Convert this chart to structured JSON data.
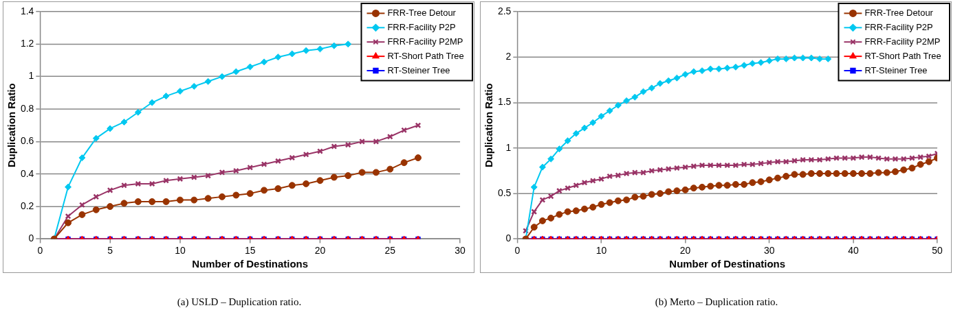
{
  "chart_data": [
    {
      "type": "line",
      "xlabel": "Number of Destinations",
      "ylabel": "Duplication Ratio",
      "x": [
        1,
        2,
        3,
        4,
        5,
        6,
        7,
        8,
        9,
        10,
        11,
        12,
        13,
        14,
        15,
        16,
        17,
        18,
        19,
        20,
        21,
        22,
        23,
        24,
        25,
        26,
        27
      ],
      "xlim": [
        0,
        30
      ],
      "xticks": [
        0,
        5,
        10,
        15,
        20,
        25,
        30
      ],
      "ylim": [
        0,
        1.4
      ],
      "yticks": [
        0,
        0.2,
        0.4,
        0.6,
        0.8,
        1,
        1.2,
        1.4
      ],
      "grid": "y",
      "legend": "top right",
      "annotations": [
        "(a)  USLD – Duplication ratio."
      ],
      "series": [
        {
          "name": "FRR-Tree Detour",
          "color": "#993300",
          "marker": "circle",
          "values": [
            0,
            0.1,
            0.15,
            0.18,
            0.2,
            0.22,
            0.23,
            0.23,
            0.23,
            0.24,
            0.24,
            0.25,
            0.26,
            0.27,
            0.28,
            0.3,
            0.31,
            0.33,
            0.34,
            0.36,
            0.38,
            0.39,
            0.41,
            0.41,
            0.43,
            0.47,
            0.5
          ]
        },
        {
          "name": "FRR-Facility P2P",
          "color": "#00c8f0",
          "marker": "diamond",
          "values": [
            0,
            0.32,
            0.5,
            0.62,
            0.68,
            0.72,
            0.78,
            0.84,
            0.88,
            0.91,
            0.94,
            0.97,
            1.0,
            1.03,
            1.06,
            1.09,
            1.12,
            1.14,
            1.16,
            1.17,
            1.19,
            1.2,
            null,
            null,
            null,
            null,
            null
          ]
        },
        {
          "name": "FRR-Facility P2MP",
          "color": "#993366",
          "marker": "cross",
          "values": [
            0,
            0.14,
            0.21,
            0.26,
            0.3,
            0.33,
            0.34,
            0.34,
            0.36,
            0.37,
            0.38,
            0.39,
            0.41,
            0.42,
            0.44,
            0.46,
            0.48,
            0.5,
            0.52,
            0.54,
            0.57,
            0.58,
            0.6,
            0.6,
            0.63,
            0.67,
            0.7
          ]
        },
        {
          "name": "RT-Short Path Tree",
          "color": "#ff0000",
          "marker": "triangle",
          "values": [
            0,
            0,
            0,
            0,
            0,
            0,
            0,
            0,
            0,
            0,
            0,
            0,
            0,
            0,
            0,
            0,
            0,
            0,
            0,
            0,
            0,
            0,
            0,
            0,
            0,
            0,
            0
          ]
        },
        {
          "name": "RT-Steiner Tree",
          "color": "#0000ff",
          "marker": "square",
          "values": [
            0,
            0,
            0,
            0,
            0,
            0,
            0,
            0,
            0,
            0,
            0,
            0,
            0,
            0,
            0,
            0,
            0,
            0,
            0,
            0,
            0,
            0,
            0,
            0,
            0,
            0,
            0
          ]
        }
      ]
    },
    {
      "type": "line",
      "xlabel": "Number of Destinations",
      "ylabel": "Duplication Ratio",
      "x": [
        1,
        2,
        3,
        4,
        5,
        6,
        7,
        8,
        9,
        10,
        11,
        12,
        13,
        14,
        15,
        16,
        17,
        18,
        19,
        20,
        21,
        22,
        23,
        24,
        25,
        26,
        27,
        28,
        29,
        30,
        31,
        32,
        33,
        34,
        35,
        36,
        37,
        38,
        39,
        40,
        41,
        42,
        43,
        44,
        45,
        46,
        47,
        48,
        49,
        50
      ],
      "xlim": [
        0,
        50
      ],
      "xticks": [
        0,
        10,
        20,
        30,
        40,
        50
      ],
      "ylim": [
        0,
        2.5
      ],
      "yticks": [
        0,
        0.5,
        1,
        1.5,
        2,
        2.5
      ],
      "grid": "y",
      "legend": "top right",
      "annotations": [
        "(b)  Merto – Duplication ratio."
      ],
      "series": [
        {
          "name": "FRR-Tree Detour",
          "color": "#993300",
          "marker": "circle",
          "values": [
            0,
            0.13,
            0.2,
            0.23,
            0.27,
            0.3,
            0.31,
            0.33,
            0.35,
            0.38,
            0.4,
            0.42,
            0.43,
            0.46,
            0.47,
            0.49,
            0.5,
            0.52,
            0.53,
            0.54,
            0.56,
            0.57,
            0.58,
            0.59,
            0.59,
            0.6,
            0.6,
            0.62,
            0.63,
            0.65,
            0.67,
            0.69,
            0.71,
            0.71,
            0.72,
            0.72,
            0.72,
            0.72,
            0.72,
            0.72,
            0.72,
            0.72,
            0.73,
            0.73,
            0.74,
            0.76,
            0.78,
            0.82,
            0.85,
            0.89
          ]
        },
        {
          "name": "FRR-Facility P2P",
          "color": "#00c8f0",
          "marker": "diamond",
          "values": [
            0,
            0.57,
            0.79,
            0.88,
            0.99,
            1.08,
            1.16,
            1.22,
            1.28,
            1.35,
            1.41,
            1.47,
            1.52,
            1.56,
            1.62,
            1.66,
            1.71,
            1.74,
            1.77,
            1.81,
            1.84,
            1.85,
            1.87,
            1.87,
            1.88,
            1.89,
            1.91,
            1.93,
            1.94,
            1.96,
            1.98,
            1.98,
            1.99,
            1.99,
            1.99,
            1.98,
            1.98,
            null,
            null,
            null,
            null,
            null,
            null,
            null,
            null,
            null,
            null,
            null,
            null,
            null
          ]
        },
        {
          "name": "FRR-Facility P2MP",
          "color": "#993366",
          "marker": "cross",
          "values": [
            0.09,
            0.3,
            0.43,
            0.47,
            0.53,
            0.56,
            0.59,
            0.62,
            0.64,
            0.66,
            0.69,
            0.7,
            0.72,
            0.73,
            0.73,
            0.75,
            0.76,
            0.77,
            0.78,
            0.79,
            0.8,
            0.81,
            0.81,
            0.81,
            0.81,
            0.81,
            0.82,
            0.82,
            0.83,
            0.84,
            0.85,
            0.85,
            0.86,
            0.87,
            0.87,
            0.87,
            0.88,
            0.89,
            0.89,
            0.89,
            0.9,
            0.9,
            0.89,
            0.88,
            0.88,
            0.88,
            0.89,
            0.9,
            0.91,
            0.94
          ]
        },
        {
          "name": "RT-Short Path Tree",
          "color": "#ff0000",
          "marker": "triangle",
          "values": [
            0,
            0,
            0,
            0,
            0,
            0,
            0,
            0,
            0,
            0,
            0,
            0,
            0,
            0,
            0,
            0,
            0,
            0,
            0,
            0,
            0,
            0,
            0,
            0,
            0,
            0,
            0,
            0,
            0,
            0,
            0,
            0,
            0,
            0,
            0,
            0,
            0,
            0,
            0,
            0,
            0,
            0,
            0,
            0,
            0,
            0,
            0,
            0,
            0,
            0
          ]
        },
        {
          "name": "RT-Steiner Tree",
          "color": "#0000ff",
          "marker": "square",
          "values": [
            0,
            0,
            0,
            0,
            0,
            0,
            0,
            0,
            0,
            0,
            0,
            0,
            0,
            0,
            0,
            0,
            0,
            0,
            0,
            0,
            0,
            0,
            0,
            0,
            0,
            0,
            0,
            0,
            0,
            0,
            0,
            0,
            0,
            0,
            0,
            0,
            0,
            0,
            0,
            0,
            0,
            0,
            0,
            0,
            0,
            0,
            0,
            0,
            0,
            0
          ]
        }
      ]
    }
  ]
}
